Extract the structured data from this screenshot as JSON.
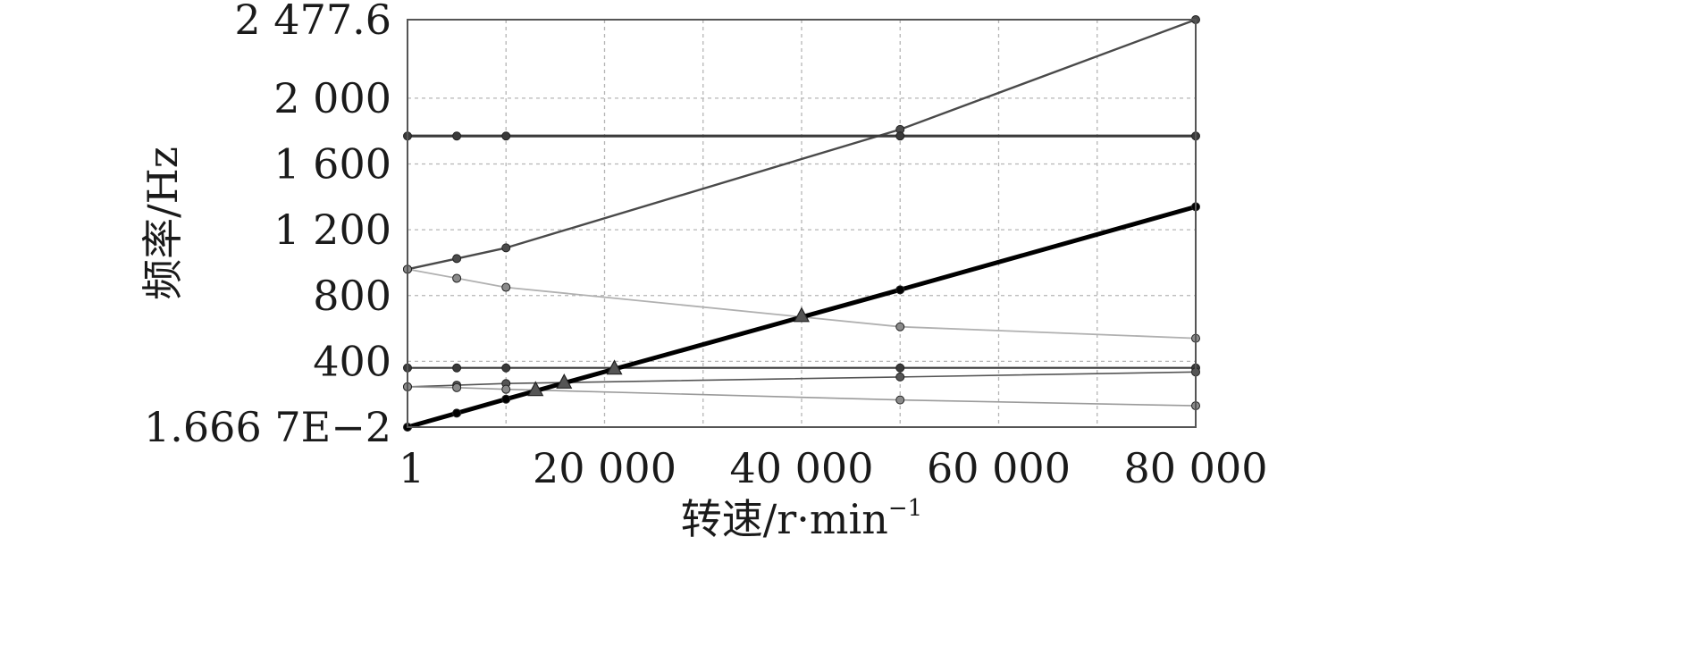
{
  "chart_data": {
    "type": "line",
    "title": "",
    "xlabel": "转速/r·min",
    "xlabel_sup": "−1",
    "ylabel": "频率/Hz",
    "xlim": [
      1,
      80000
    ],
    "ylim": [
      0.016667,
      2477.6
    ],
    "x_tick_values": [
      1,
      20000,
      40000,
      60000,
      80000
    ],
    "x_tick_labels": [
      "1",
      "20 000",
      "40 000",
      "60 000",
      "80 000"
    ],
    "x_grid_values": [
      10000,
      20000,
      30000,
      40000,
      50000,
      60000,
      70000
    ],
    "y_tick_values": [
      0.016667,
      400,
      800,
      1200,
      1600,
      2000,
      2477.6
    ],
    "y_tick_labels": [
      "1.666 7E−2",
      "400",
      "800",
      "1 200",
      "1 600",
      "2 000",
      "2 477.6"
    ],
    "y_grid_values": [
      400,
      800,
      1200,
      1600,
      2000
    ],
    "grid": true,
    "legend": "none",
    "series": [
      {
        "color": "#4a4a4a",
        "width": 2.4,
        "marker": "dot",
        "points": [
          [
            1,
            960
          ],
          [
            5000,
            1025
          ],
          [
            10000,
            1090
          ],
          [
            50000,
            1810
          ],
          [
            80000,
            2477.6
          ]
        ]
      },
      {
        "color": "#b0b0b0",
        "width": 1.8,
        "marker": "dot",
        "markerColor": "#8a8a8a",
        "points": [
          [
            1,
            960
          ],
          [
            5000,
            905
          ],
          [
            10000,
            850
          ],
          [
            50000,
            610
          ],
          [
            80000,
            540
          ]
        ]
      },
      {
        "color": "#3a3a3a",
        "width": 3.2,
        "marker": "dot",
        "points": [
          [
            1,
            1770
          ],
          [
            5000,
            1770
          ],
          [
            10000,
            1770
          ],
          [
            50000,
            1770
          ],
          [
            80000,
            1770
          ]
        ]
      },
      {
        "color": "#3a3a3a",
        "width": 2.2,
        "marker": "dot",
        "points": [
          [
            1,
            360
          ],
          [
            5000,
            360
          ],
          [
            10000,
            360
          ],
          [
            50000,
            360
          ],
          [
            80000,
            360
          ]
        ]
      },
      {
        "color": "#555555",
        "width": 1.6,
        "marker": "dot",
        "points": [
          [
            1,
            245
          ],
          [
            5000,
            255
          ],
          [
            10000,
            265
          ],
          [
            50000,
            305
          ],
          [
            80000,
            335
          ]
        ]
      },
      {
        "color": "#9a9a9a",
        "width": 1.6,
        "marker": "dot",
        "markerColor": "#8a8a8a",
        "points": [
          [
            1,
            245
          ],
          [
            5000,
            240
          ],
          [
            10000,
            230
          ],
          [
            50000,
            165
          ],
          [
            80000,
            130
          ]
        ]
      },
      {
        "color": "#000000",
        "width": 5,
        "marker": "dot",
        "points": [
          [
            1,
            0.016667
          ],
          [
            5000,
            85
          ],
          [
            10000,
            170
          ],
          [
            50000,
            835
          ],
          [
            80000,
            1340
          ]
        ]
      }
    ],
    "annotations": {
      "marker": "triangle",
      "color": "#555555",
      "points": [
        [
          13000,
          225
        ],
        [
          15900,
          270
        ],
        [
          21000,
          355
        ],
        [
          40000,
          675
        ]
      ]
    }
  }
}
